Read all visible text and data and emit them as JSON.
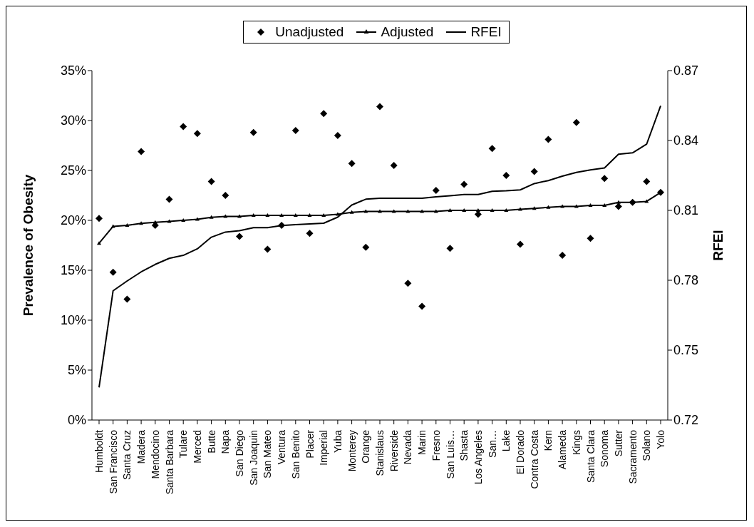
{
  "chart_data": {
    "type": "line",
    "ylabel": "Prevalence of Obesity",
    "y2label": "RFEI",
    "categories": [
      "Humboldt",
      "San Francisco",
      "Santa Cruz",
      "Madera",
      "Mendocino",
      "Santa Barbara",
      "Tulare",
      "Merced",
      "Butte",
      "Napa",
      "San Diego",
      "San Joaquin",
      "San Mateo",
      "Ventura",
      "San Benito",
      "Placer",
      "Imperial",
      "Yuba",
      "Monterey",
      "Orange",
      "Stanislaus",
      "Riverside",
      "Nevada",
      "Marin",
      "Fresno",
      "San Luis…",
      "Shasta",
      "Los Angeles",
      "San…",
      "Lake",
      "El Dorado",
      "Contra Costa",
      "Kern",
      "Alameda",
      "Kings",
      "Santa Clara",
      "Sonoma",
      "Sutter",
      "Sacramento",
      "Solano",
      "Yolo"
    ],
    "series": [
      {
        "name": "Unadjusted",
        "type": "scatter",
        "marker": "diamond",
        "color": "#000000",
        "values": [
          20.2,
          14.8,
          12.1,
          26.9,
          19.5,
          22.1,
          29.4,
          28.7,
          23.9,
          22.5,
          18.4,
          28.8,
          17.1,
          19.5,
          29.0,
          18.7,
          30.7,
          28.5,
          25.7,
          17.3,
          31.4,
          25.5,
          13.7,
          11.4,
          23.0,
          17.2,
          23.6,
          20.6,
          27.2,
          24.5,
          17.6,
          24.9,
          28.1,
          16.5,
          29.8,
          18.2,
          24.2,
          21.4,
          21.8,
          23.9,
          22.8
        ]
      },
      {
        "name": "Adjusted",
        "marker": "triangle",
        "color": "#000000",
        "values": [
          17.7,
          19.4,
          19.5,
          19.7,
          19.8,
          19.9,
          20.0,
          20.1,
          20.3,
          20.4,
          20.4,
          20.5,
          20.5,
          20.5,
          20.5,
          20.5,
          20.5,
          20.6,
          20.8,
          20.9,
          20.9,
          20.9,
          20.9,
          20.9,
          20.9,
          21.0,
          21.0,
          21.0,
          21.0,
          21.0,
          21.1,
          21.2,
          21.3,
          21.4,
          21.4,
          21.5,
          21.5,
          21.8,
          21.8,
          21.9,
          22.8
        ]
      },
      {
        "name": "RFEI",
        "marker": "none",
        "axis": "y2",
        "color": "#000000",
        "values": [
          0.734,
          0.7755,
          0.7797,
          0.7836,
          0.7868,
          0.7894,
          0.7907,
          0.7935,
          0.7985,
          0.8007,
          0.8013,
          0.8026,
          0.8026,
          0.8035,
          0.8039,
          0.8042,
          0.8045,
          0.8071,
          0.8123,
          0.8148,
          0.8152,
          0.8152,
          0.8152,
          0.8152,
          0.8158,
          0.8163,
          0.8168,
          0.8168,
          0.8182,
          0.8184,
          0.8188,
          0.8215,
          0.8228,
          0.8247,
          0.8263,
          0.8274,
          0.8282,
          0.8341,
          0.8347,
          0.8384,
          0.8549
        ]
      }
    ],
    "ylim": [
      0,
      35
    ],
    "yticks": [
      {
        "value": 0,
        "label": "0%"
      },
      {
        "value": 5,
        "label": "5%"
      },
      {
        "value": 10,
        "label": "10%"
      },
      {
        "value": 15,
        "label": "15%"
      },
      {
        "value": 20,
        "label": "20%"
      },
      {
        "value": 25,
        "label": "25%"
      },
      {
        "value": 30,
        "label": "30%"
      },
      {
        "value": 35,
        "label": "35%"
      }
    ],
    "y2lim": [
      0.72,
      0.87
    ],
    "y2ticks": [
      {
        "value": 0.72,
        "label": "0.72"
      },
      {
        "value": 0.75,
        "label": "0.75"
      },
      {
        "value": 0.78,
        "label": "0.78"
      },
      {
        "value": 0.81,
        "label": "0.81"
      },
      {
        "value": 0.84,
        "label": "0.84"
      },
      {
        "value": 0.87,
        "label": "0.87"
      }
    ],
    "grid": false,
    "legend": "top"
  }
}
